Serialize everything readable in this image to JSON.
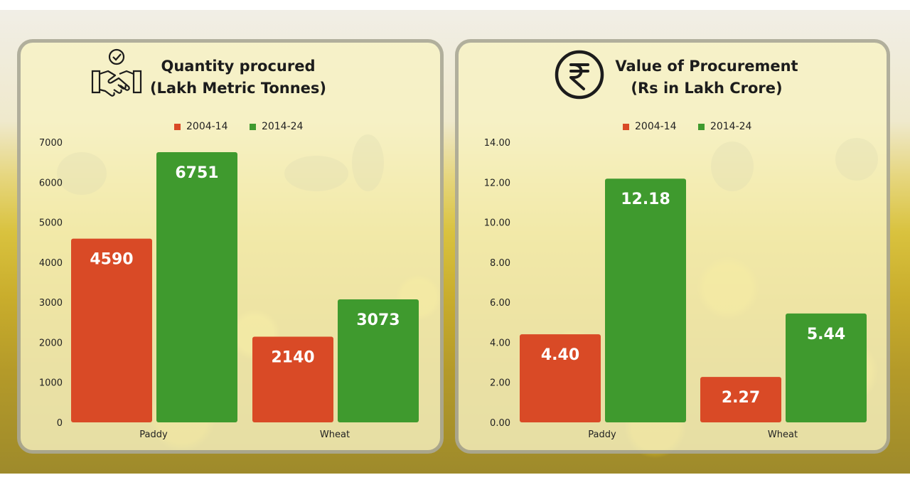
{
  "colors": {
    "red": "#d94a26",
    "green": "#3f9a2e",
    "dark": "#1c1c1c"
  },
  "icons": [
    "handshake-check-icon",
    "rupee-circle-icon"
  ],
  "chart_data": [
    {
      "type": "bar",
      "title_line1": "Quantity procured",
      "title_line2": "(Lakh Metric Tonnes)",
      "categories": [
        "Paddy",
        "Wheat"
      ],
      "series": [
        {
          "name": "2004-14",
          "values": [
            4590,
            2140
          ],
          "labels": [
            "4590",
            "2140"
          ]
        },
        {
          "name": "2014-24",
          "values": [
            6751,
            3073
          ],
          "labels": [
            "6751",
            "3073"
          ]
        }
      ],
      "ylim": [
        0,
        7000
      ],
      "yticks": [
        "0",
        "1000",
        "2000",
        "3000",
        "4000",
        "5000",
        "6000",
        "7000"
      ],
      "grid": false,
      "legend": "top-center"
    },
    {
      "type": "bar",
      "title_line1": "Value of Procurement",
      "title_line2": "(Rs in Lakh Crore)",
      "categories": [
        "Paddy",
        "Wheat"
      ],
      "series": [
        {
          "name": "2004-14",
          "values": [
            4.4,
            2.27
          ],
          "labels": [
            "4.40",
            "2.27"
          ]
        },
        {
          "name": "2014-24",
          "values": [
            12.18,
            5.44
          ],
          "labels": [
            "12.18",
            "5.44"
          ]
        }
      ],
      "ylim": [
        0,
        14
      ],
      "yticks": [
        "0.00",
        "2.00",
        "4.00",
        "6.00",
        "8.00",
        "10.00",
        "12.00",
        "14.00"
      ],
      "grid": false,
      "legend": "top-center"
    }
  ]
}
